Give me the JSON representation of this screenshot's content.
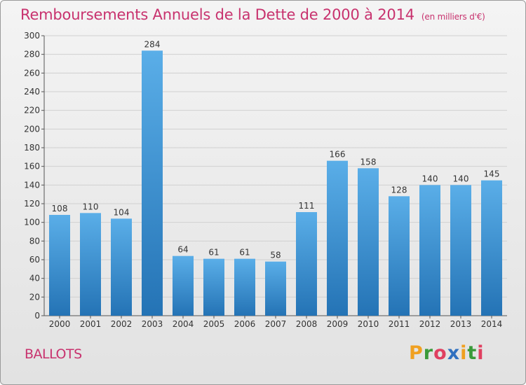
{
  "header": {
    "title": "Remboursements Annuels de la Dette de 2000 à 2014",
    "unit": "(en milliers d'€)"
  },
  "footer": {
    "commune": "BALLOTS",
    "logo_text": "Proxiti"
  },
  "colors": {
    "title": "#c8326e",
    "bar_top": "#5aaee8",
    "bar_bottom": "#2473b5",
    "grid": "#d0d0d0"
  },
  "chart_data": {
    "type": "bar",
    "title": "Remboursements Annuels de la Dette de 2000 à 2014",
    "xlabel": "",
    "ylabel": "",
    "categories": [
      "2000",
      "2001",
      "2002",
      "2003",
      "2004",
      "2005",
      "2006",
      "2007",
      "2008",
      "2009",
      "2010",
      "2011",
      "2012",
      "2013",
      "2014"
    ],
    "values": [
      108,
      110,
      104,
      284,
      64,
      61,
      61,
      58,
      111,
      166,
      158,
      128,
      140,
      140,
      145
    ],
    "ylim": [
      0,
      300
    ],
    "yticks": [
      0,
      20,
      40,
      60,
      80,
      100,
      120,
      140,
      160,
      180,
      200,
      220,
      240,
      260,
      280,
      300
    ],
    "grid": true,
    "legend": "none"
  }
}
